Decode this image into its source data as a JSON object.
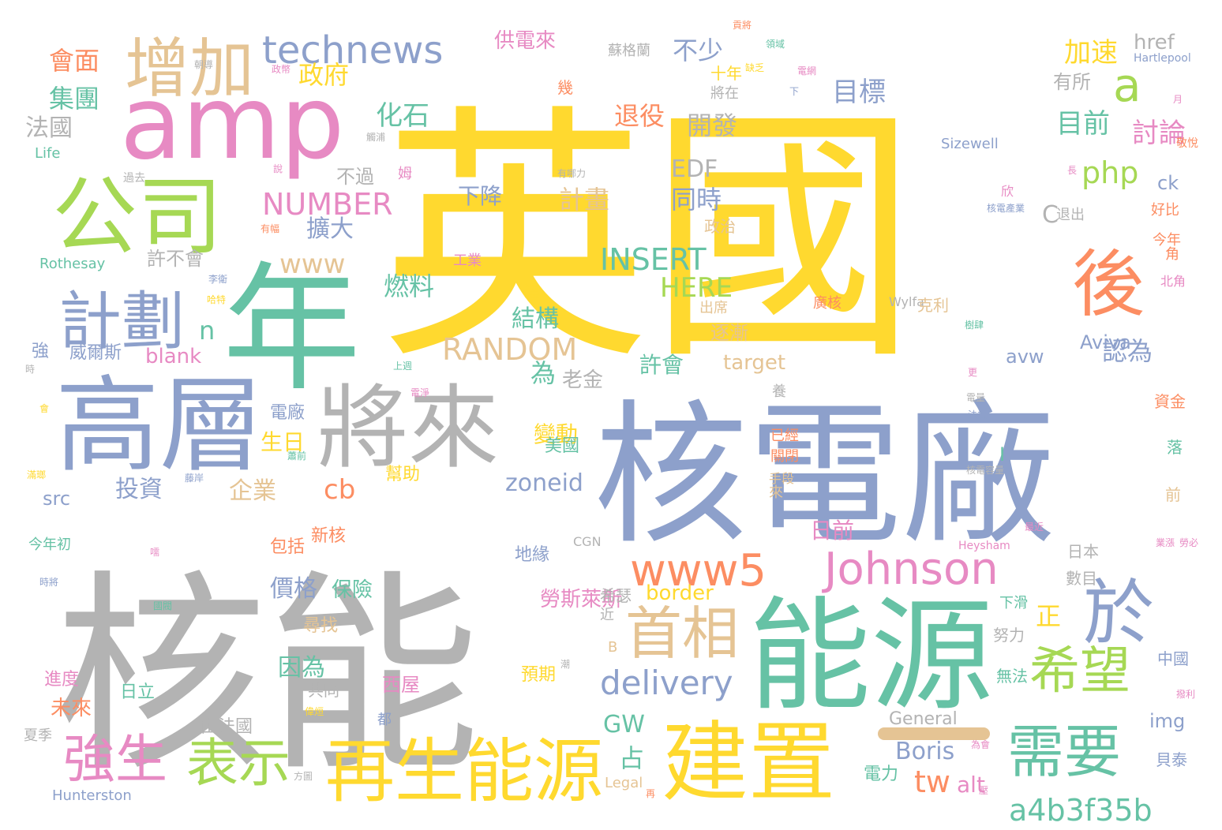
{
  "palette": {
    "yellow": "#FFD92F",
    "grey": "#B3B3B3",
    "blue": "#8DA0CB",
    "green": "#66C2A5",
    "pink": "#E78AC3",
    "lime": "#A6D854",
    "orange": "#FC8D62",
    "tan": "#E5C494"
  },
  "words": [
    {
      "t": "英國",
      "c": "yellow"
    },
    {
      "t": "核能",
      "c": "grey"
    },
    {
      "t": "核電廠",
      "c": "blue"
    },
    {
      "t": "能源",
      "c": "green"
    },
    {
      "t": "年",
      "c": "green"
    },
    {
      "t": "amp",
      "c": "pink"
    },
    {
      "t": "高層",
      "c": "blue"
    },
    {
      "t": "將來",
      "c": "grey"
    },
    {
      "t": "公司",
      "c": "lime"
    },
    {
      "t": "建置",
      "c": "yellow"
    },
    {
      "t": "再生能源",
      "c": "yellow"
    },
    {
      "t": "增加",
      "c": "tan"
    },
    {
      "t": "後",
      "c": "orange"
    },
    {
      "t": "計劃",
      "c": "blue"
    },
    {
      "t": "於",
      "c": "blue"
    },
    {
      "t": "需要",
      "c": "green"
    },
    {
      "t": "希望",
      "c": "lime"
    },
    {
      "t": "首相",
      "c": "tan"
    },
    {
      "t": "www5",
      "c": "orange"
    },
    {
      "t": "Johnson",
      "c": "pink"
    },
    {
      "t": "technews",
      "c": "blue"
    },
    {
      "t": "delivery",
      "c": "blue"
    },
    {
      "t": "表示",
      "c": "lime"
    },
    {
      "t": "強生",
      "c": "pink"
    },
    {
      "t": "a4b3f35b",
      "c": "green"
    },
    {
      "t": "a",
      "c": "lime"
    },
    {
      "t": "php",
      "c": "lime"
    },
    {
      "t": "NUMBER",
      "c": "pink"
    },
    {
      "t": "RANDOM",
      "c": "tan"
    },
    {
      "t": "INSERT",
      "c": "green"
    },
    {
      "t": "HERE",
      "c": "lime"
    },
    {
      "t": "www",
      "c": "tan"
    },
    {
      "t": "tw",
      "c": "orange"
    },
    {
      "t": "alt",
      "c": "pink"
    },
    {
      "t": "Boris",
      "c": "blue"
    },
    {
      "t": "GW",
      "c": "green"
    },
    {
      "t": "zoneid",
      "c": "blue"
    },
    {
      "t": "cb",
      "c": "orange"
    },
    {
      "t": "n",
      "c": "green"
    },
    {
      "t": "C",
      "c": "grey"
    },
    {
      "t": "EDF",
      "c": "grey"
    },
    {
      "t": "不少",
      "c": "blue"
    },
    {
      "t": "目標",
      "c": "blue"
    },
    {
      "t": "加速",
      "c": "yellow"
    },
    {
      "t": "href",
      "c": "grey"
    },
    {
      "t": "目前",
      "c": "green"
    },
    {
      "t": "討論",
      "c": "pink"
    },
    {
      "t": "退役",
      "c": "orange"
    },
    {
      "t": "開發",
      "c": "grey"
    },
    {
      "t": "化石",
      "c": "green"
    },
    {
      "t": "政府",
      "c": "yellow"
    },
    {
      "t": "會面",
      "c": "orange"
    },
    {
      "t": "集團",
      "c": "green"
    },
    {
      "t": "法國",
      "c": "grey"
    },
    {
      "t": "計畫",
      "c": "tan"
    },
    {
      "t": "同時",
      "c": "blue"
    },
    {
      "t": "擴大",
      "c": "blue"
    },
    {
      "t": "燃料",
      "c": "green"
    },
    {
      "t": "結構",
      "c": "green"
    },
    {
      "t": "認為",
      "c": "blue"
    },
    {
      "t": "為",
      "c": "green"
    },
    {
      "t": "老金",
      "c": "grey"
    },
    {
      "t": "許會",
      "c": "green"
    },
    {
      "t": "生日",
      "c": "yellow"
    },
    {
      "t": "投資",
      "c": "blue"
    },
    {
      "t": "企業",
      "c": "tan"
    },
    {
      "t": "價格",
      "c": "blue"
    },
    {
      "t": "因為",
      "c": "green"
    },
    {
      "t": "正",
      "c": "yellow"
    },
    {
      "t": "占",
      "c": "green"
    },
    {
      "t": "變動",
      "c": "yellow"
    },
    {
      "t": "日前",
      "c": "pink"
    },
    {
      "t": "保險",
      "c": "green"
    },
    {
      "t": "逐漸",
      "c": "tan"
    },
    {
      "t": "有所",
      "c": "grey"
    },
    {
      "t": "target",
      "c": "tan"
    },
    {
      "t": "avw",
      "c": "blue"
    },
    {
      "t": "Aviva",
      "c": "blue"
    },
    {
      "t": "border",
      "c": "yellow"
    },
    {
      "t": "blank",
      "c": "pink"
    },
    {
      "t": "src",
      "c": "blue"
    },
    {
      "t": "General",
      "c": "grey"
    },
    {
      "t": "img",
      "c": "blue"
    },
    {
      "t": "ck",
      "c": "blue"
    },
    {
      "t": "Sizewell",
      "c": "blue"
    },
    {
      "t": "Rothesay",
      "c": "green"
    },
    {
      "t": "Life",
      "c": "green"
    },
    {
      "t": "Hunterston",
      "c": "blue"
    },
    {
      "t": "Hartlepool",
      "c": "blue"
    },
    {
      "t": "Heysham",
      "c": "pink"
    },
    {
      "t": "Wylfa",
      "c": "grey"
    },
    {
      "t": "CGN",
      "c": "grey"
    },
    {
      "t": "Legal",
      "c": "tan"
    },
    {
      "t": "供電來",
      "c": "pink"
    },
    {
      "t": "下降",
      "c": "blue"
    },
    {
      "t": "不過",
      "c": "grey"
    },
    {
      "t": "許不會",
      "c": "grey"
    },
    {
      "t": "威爾斯",
      "c": "blue"
    },
    {
      "t": "強",
      "c": "blue"
    },
    {
      "t": "電廠",
      "c": "blue"
    },
    {
      "t": "新核",
      "c": "orange"
    },
    {
      "t": "包括",
      "c": "orange"
    },
    {
      "t": "尋找",
      "c": "tan"
    },
    {
      "t": "幫助",
      "c": "yellow"
    },
    {
      "t": "美國",
      "c": "green"
    },
    {
      "t": "勞斯萊斯",
      "c": "pink"
    },
    {
      "t": "地緣",
      "c": "blue"
    },
    {
      "t": "希瑟",
      "c": "grey"
    },
    {
      "t": "西屋",
      "c": "pink"
    },
    {
      "t": "預期",
      "c": "yellow"
    },
    {
      "t": "共同",
      "c": "grey"
    },
    {
      "t": "日立",
      "c": "green"
    },
    {
      "t": "由法國",
      "c": "grey"
    },
    {
      "t": "進度",
      "c": "pink"
    },
    {
      "t": "未來",
      "c": "orange"
    },
    {
      "t": "今年初",
      "c": "green"
    },
    {
      "t": "夏季",
      "c": "grey"
    },
    {
      "t": "電力",
      "c": "green"
    },
    {
      "t": "努力",
      "c": "grey"
    },
    {
      "t": "無法",
      "c": "green"
    },
    {
      "t": "中國",
      "c": "blue"
    },
    {
      "t": "貝泰",
      "c": "blue"
    },
    {
      "t": "數目",
      "c": "grey"
    },
    {
      "t": "日本",
      "c": "grey"
    },
    {
      "t": "下滑",
      "c": "green"
    },
    {
      "t": "資金",
      "c": "orange"
    },
    {
      "t": "落",
      "c": "green"
    },
    {
      "t": "前",
      "c": "tan"
    },
    {
      "t": "十年",
      "c": "yellow"
    },
    {
      "t": "將在",
      "c": "grey"
    },
    {
      "t": "出席",
      "c": "tan"
    },
    {
      "t": "政治",
      "c": "tan"
    },
    {
      "t": "工業",
      "c": "pink"
    },
    {
      "t": "廣核",
      "c": "orange"
    },
    {
      "t": "克利",
      "c": "tan"
    },
    {
      "t": "已經",
      "c": "orange"
    },
    {
      "t": "關閉",
      "c": "orange"
    },
    {
      "t": "退出",
      "c": "grey"
    },
    {
      "t": "好比",
      "c": "orange"
    },
    {
      "t": "今年",
      "c": "orange"
    },
    {
      "t": "角",
      "c": "orange"
    },
    {
      "t": "北角",
      "c": "pink"
    },
    {
      "t": "欣",
      "c": "pink"
    },
    {
      "t": "長",
      "c": "pink"
    },
    {
      "t": "月",
      "c": "pink"
    },
    {
      "t": "敬悅",
      "c": "orange"
    },
    {
      "t": "蘇格蘭",
      "c": "grey"
    },
    {
      "t": "I",
      "c": "green"
    },
    {
      "t": "B",
      "c": "tan"
    },
    {
      "t": "達",
      "c": "yellow"
    },
    {
      "t": "養",
      "c": "grey"
    },
    {
      "t": "都",
      "c": "blue"
    },
    {
      "t": "手段",
      "c": "tan"
    },
    {
      "t": "來",
      "c": "tan"
    },
    {
      "t": "近",
      "c": "grey"
    },
    {
      "t": "姆",
      "c": "pink"
    },
    {
      "t": "過去",
      "c": "grey"
    },
    {
      "t": "時",
      "c": "grey"
    },
    {
      "t": "會",
      "c": "yellow"
    },
    {
      "t": "幾",
      "c": "orange"
    },
    {
      "t": "電網",
      "c": "pink"
    },
    {
      "t": "下",
      "c": "blue"
    },
    {
      "t": "有哪力",
      "c": "grey"
    },
    {
      "t": "核電產業",
      "c": "blue"
    },
    {
      "t": "樹肆",
      "c": "green"
    },
    {
      "t": "核電容量",
      "c": "grey"
    },
    {
      "t": "最近",
      "c": "pink"
    },
    {
      "t": "業漲",
      "c": "pink"
    },
    {
      "t": "勞必",
      "c": "pink"
    },
    {
      "t": "撥利",
      "c": "pink"
    },
    {
      "t": "為會",
      "c": "pink"
    },
    {
      "t": "壓",
      "c": "pink"
    },
    {
      "t": "方圖",
      "c": "grey"
    },
    {
      "t": "潮",
      "c": "grey"
    },
    {
      "t": "再",
      "c": "orange"
    },
    {
      "t": "偉烜",
      "c": "yellow"
    },
    {
      "t": "電淨",
      "c": "pink"
    },
    {
      "t": "蕭前",
      "c": "green"
    },
    {
      "t": "上週",
      "c": "green"
    },
    {
      "t": "李衛",
      "c": "blue"
    },
    {
      "t": "哈特",
      "c": "yellow"
    },
    {
      "t": "有幅",
      "c": "orange"
    },
    {
      "t": "說",
      "c": "pink"
    },
    {
      "t": "觸浦",
      "c": "grey"
    },
    {
      "t": "朝導",
      "c": "grey"
    },
    {
      "t": "政幣",
      "c": "pink"
    },
    {
      "t": "國閥",
      "c": "green"
    },
    {
      "t": "嚅",
      "c": "pink"
    },
    {
      "t": "時將",
      "c": "blue"
    },
    {
      "t": "藤岸",
      "c": "blue"
    },
    {
      "t": "滿瑯",
      "c": "yellow"
    },
    {
      "t": "更",
      "c": "pink"
    },
    {
      "t": "電量",
      "c": "grey"
    },
    {
      "t": "法規",
      "c": "blue"
    },
    {
      "t": "貢將",
      "c": "orange"
    },
    {
      "t": "領域",
      "c": "green"
    },
    {
      "t": "缺乏",
      "c": "yellow"
    },
    {
      "t": "問",
      "c": "orange"
    },
    {
      "t": "佔",
      "c": "orange"
    },
    {
      "t": "雜",
      "c": "green"
    }
  ]
}
